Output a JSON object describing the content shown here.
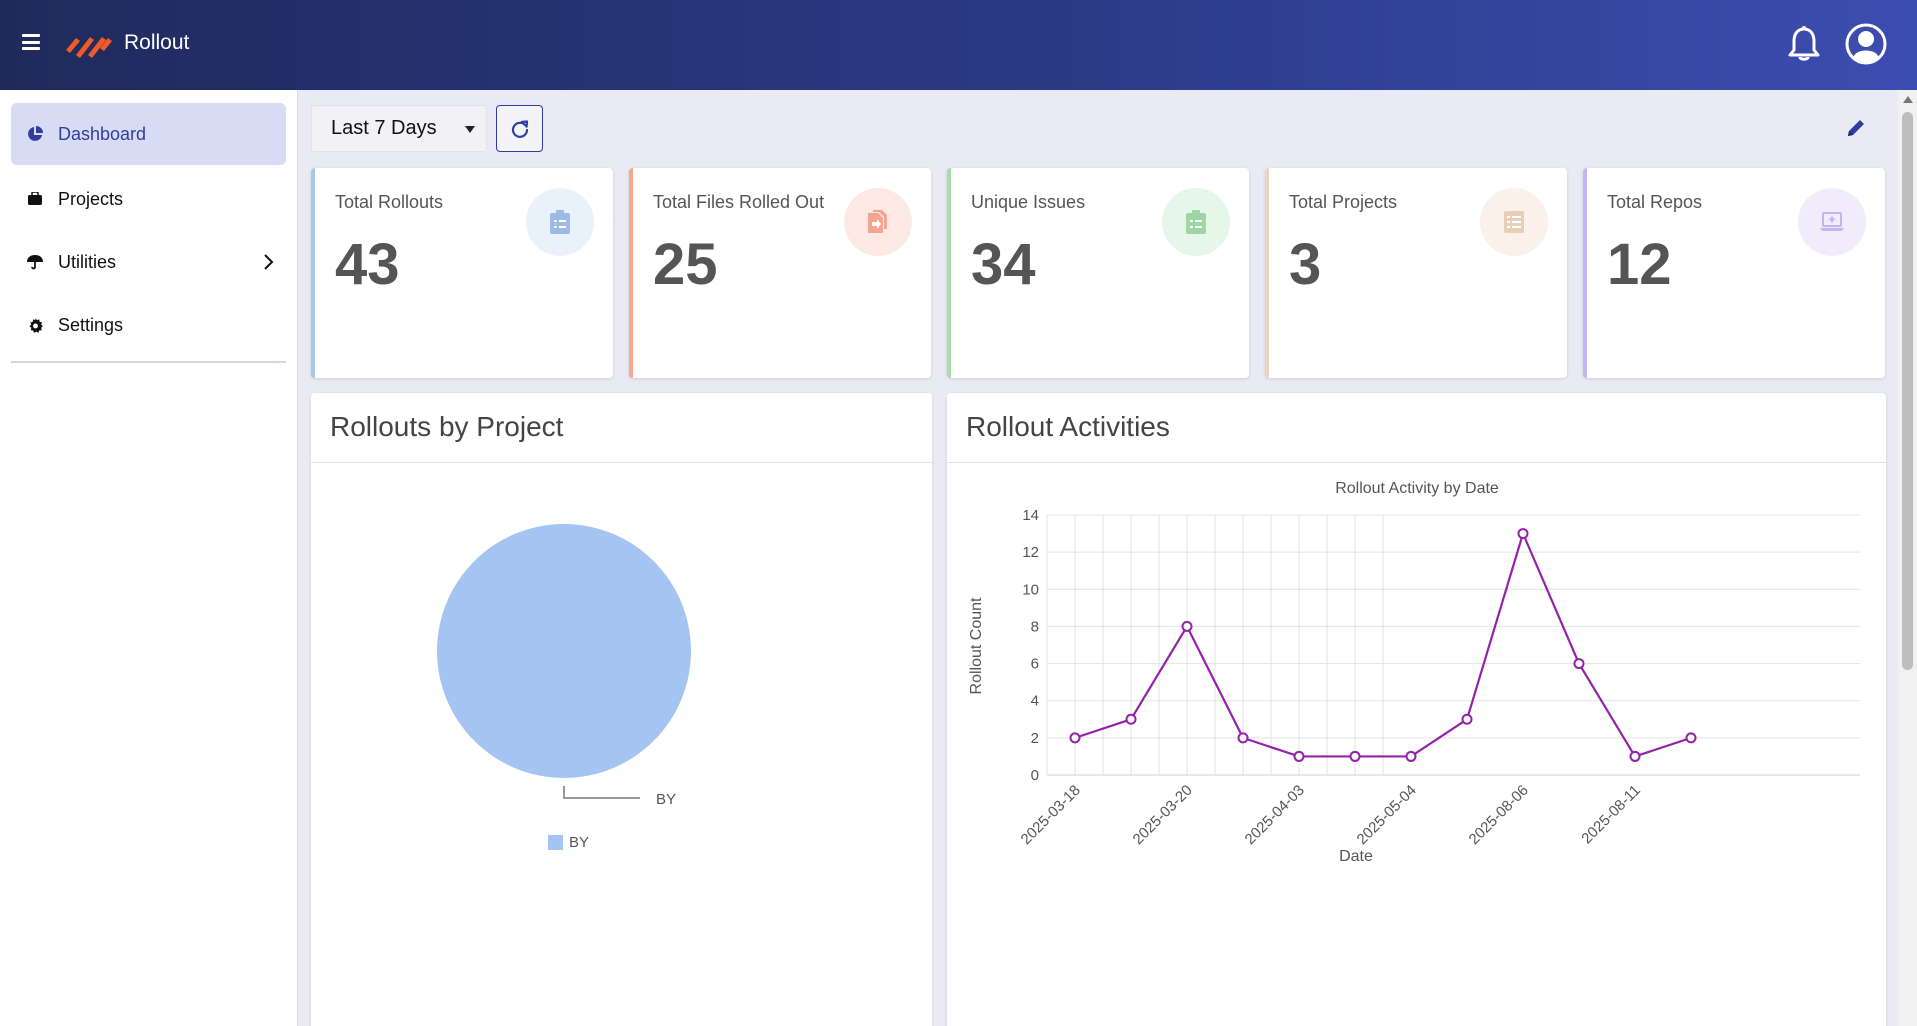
{
  "app": {
    "title": "Rollout"
  },
  "sidebar": {
    "items": [
      {
        "label": "Dashboard",
        "icon": "pie-chart-icon",
        "active": true
      },
      {
        "label": "Projects",
        "icon": "briefcase-icon"
      },
      {
        "label": "Utilities",
        "icon": "umbrella-icon",
        "has_submenu": true
      },
      {
        "label": "Settings",
        "icon": "gear-icon"
      }
    ]
  },
  "toolbar": {
    "date_range": "Last 7 Days"
  },
  "stats": [
    {
      "label": "Total Rollouts",
      "value": "43",
      "accent": "#a9c6f0",
      "badge_bg": "#e9f1fb",
      "icon_color": "#9cbbe9",
      "icon": "clipboard-list-icon"
    },
    {
      "label": "Total Files Rolled Out",
      "value": "25",
      "accent": "#f5a88c",
      "badge_bg": "#fde9e4",
      "icon_color": "#f3a493",
      "icon": "file-export-icon"
    },
    {
      "label": "Unique Issues",
      "value": "34",
      "accent": "#a6dea9",
      "badge_bg": "#e6f6e8",
      "icon_color": "#9dd6a3",
      "icon": "clipboard-check-icon"
    },
    {
      "label": "Total Projects",
      "value": "3",
      "accent": "#f1d4bf",
      "badge_bg": "#fbf1ea",
      "icon_color": "#e8cdb7",
      "icon": "checklist-icon"
    },
    {
      "label": "Total Repos",
      "value": "12",
      "accent": "#c6b6ef",
      "badge_bg": "#f1ecfc",
      "icon_color": "#c3b3ef",
      "icon": "laptop-code-icon"
    }
  ],
  "panels": {
    "by_project": {
      "title": "Rollouts by Project"
    },
    "activities": {
      "title": "Rollout Activities"
    }
  },
  "chart_data": [
    {
      "type": "pie",
      "title": "",
      "labels": [
        "BY"
      ],
      "values": [
        100
      ],
      "colors": [
        "#a4c4f2"
      ],
      "legend": "bottom",
      "slice_label": "BY"
    },
    {
      "type": "line",
      "title": "Rollout Activity by Date",
      "xlabel": "Date",
      "ylabel": "Rollout Count",
      "x": [
        "2025-03-18",
        "",
        "2025-03-20",
        "",
        "2025-04-03",
        "",
        "2025-05-04",
        "",
        "2025-08-06",
        "",
        "2025-08-11",
        ""
      ],
      "values": [
        2,
        3,
        8,
        2,
        1,
        1,
        1,
        3,
        13,
        6,
        1,
        2
      ],
      "ylim": [
        0,
        14
      ],
      "yticks": [
        0,
        2,
        4,
        6,
        8,
        10,
        12,
        14
      ],
      "color": "#9322a8",
      "grid": true
    }
  ]
}
